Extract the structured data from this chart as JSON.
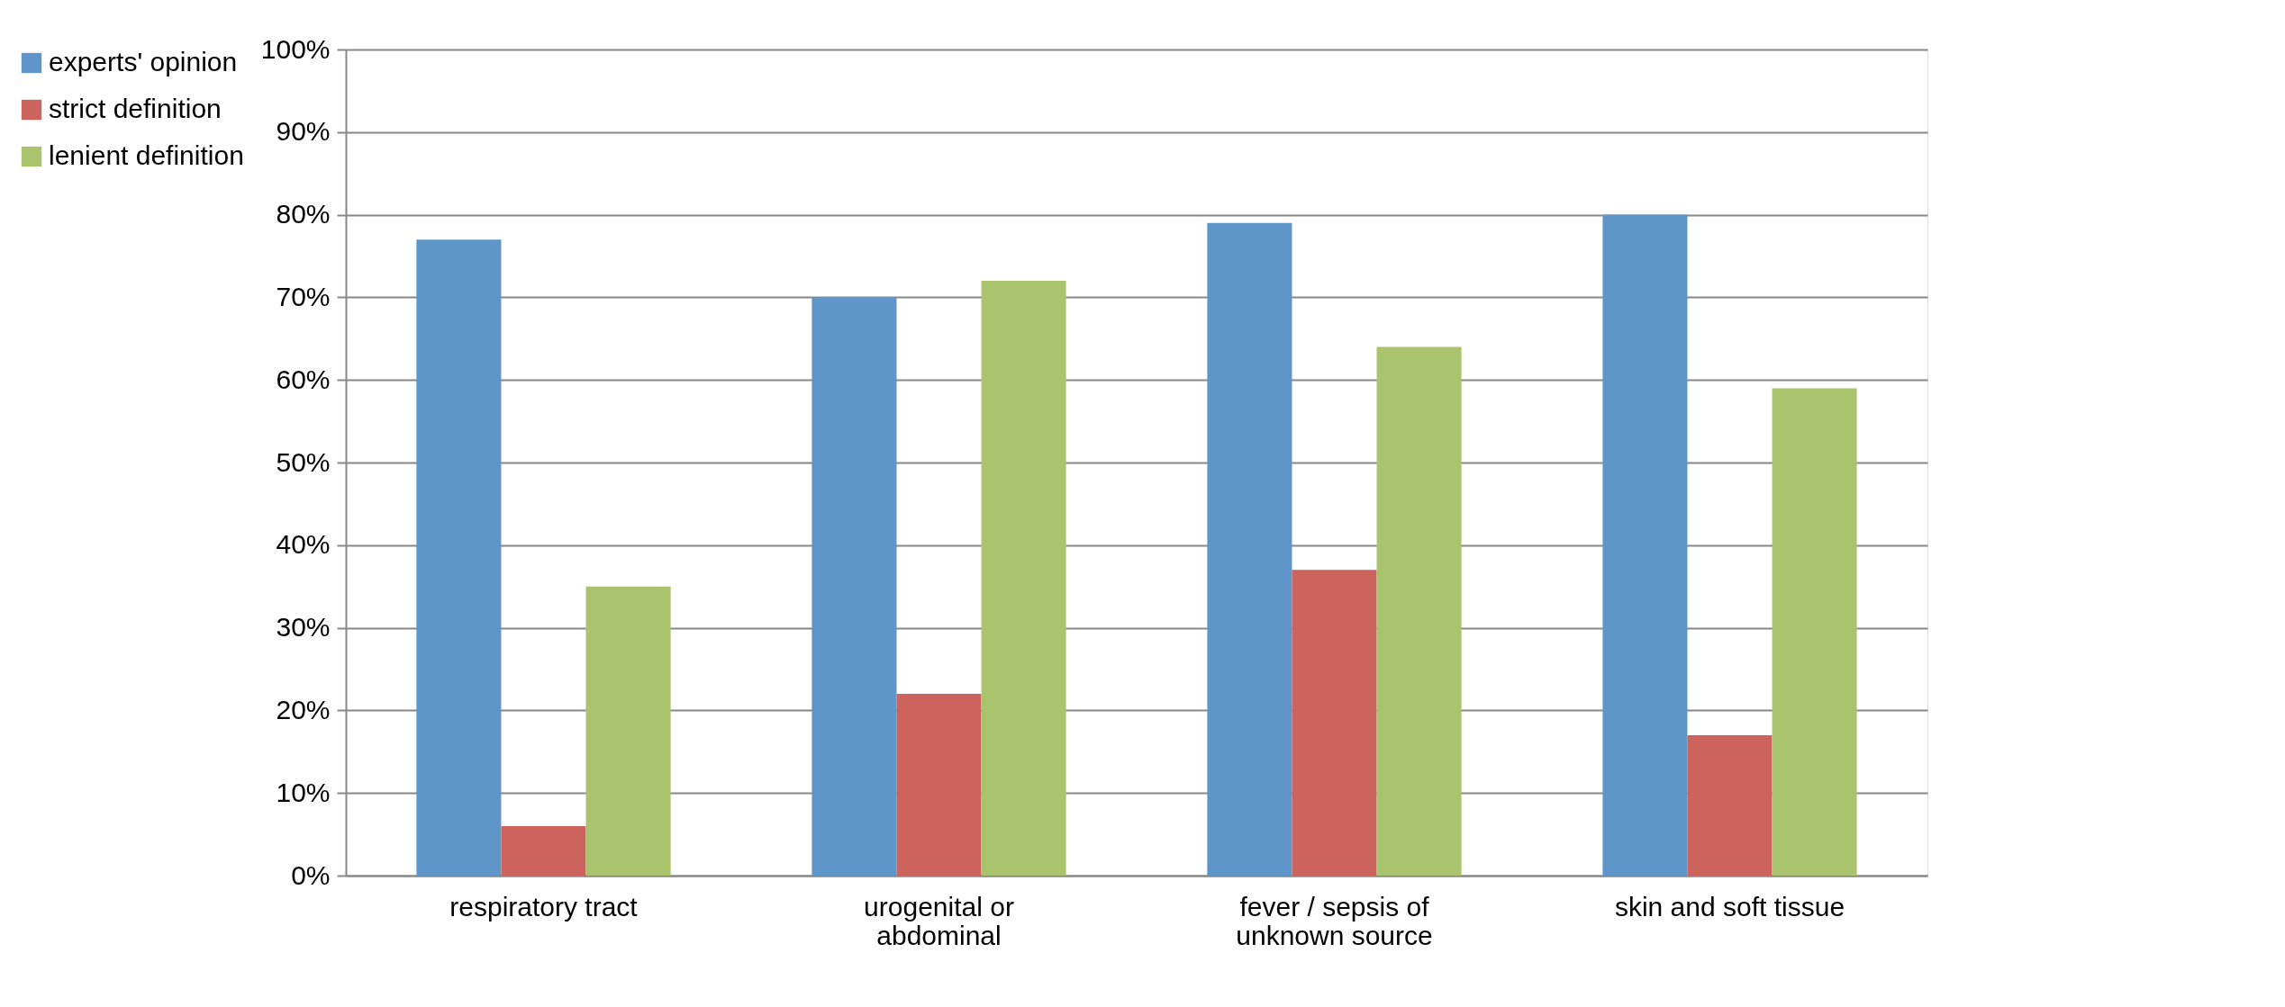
{
  "chart_data": {
    "type": "bar",
    "categories": [
      "respiratory tract",
      "urogenital or abdominal",
      "fever / sepsis of unknown source",
      "skin and soft tissue"
    ],
    "series": [
      {
        "name": "experts' opinion",
        "color": "#5f96c9",
        "values": [
          77,
          70,
          79,
          80
        ]
      },
      {
        "name": "strict definition",
        "color": "#cd635d",
        "values": [
          6,
          22,
          37,
          17
        ]
      },
      {
        "name": "lenient definition",
        "color": "#a9c46c",
        "values": [
          35,
          72,
          64,
          59
        ]
      }
    ],
    "ylim": [
      0,
      100
    ],
    "yticks": [
      {
        "value": 0,
        "label": "0%"
      },
      {
        "value": 10,
        "label": "10%"
      },
      {
        "value": 20,
        "label": "20%"
      },
      {
        "value": 30,
        "label": "30%"
      },
      {
        "value": 40,
        "label": "40%"
      },
      {
        "value": 50,
        "label": "50%"
      },
      {
        "value": 60,
        "label": "60%"
      },
      {
        "value": 70,
        "label": "70%"
      },
      {
        "value": 80,
        "label": "80%"
      },
      {
        "value": 90,
        "label": "90%"
      },
      {
        "value": 100,
        "label": "100%"
      }
    ],
    "grid": "y",
    "legend": "left"
  }
}
